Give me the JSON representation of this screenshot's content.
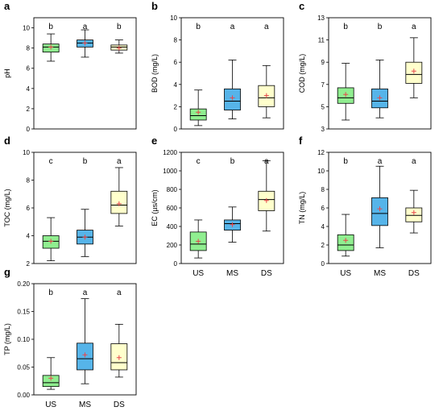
{
  "colors": {
    "US": "#90ee90",
    "MS": "#56b4e9",
    "DS": "#ffffcc",
    "mean_marker": "#e8474b",
    "frame": "#000000"
  },
  "chart_data": [
    {
      "type": "box",
      "panel_letter": "a",
      "ylabel": "pH",
      "ylim": [
        0,
        11
      ],
      "yticks": [
        0,
        2,
        4,
        6,
        8,
        10
      ],
      "categories": [
        "US",
        "MS",
        "DS"
      ],
      "show_xtick_labels": false,
      "boxes": [
        {
          "group": "US",
          "min": 6.7,
          "q1": 7.6,
          "median": 8.1,
          "q3": 8.4,
          "max": 9.4,
          "mean": 8.1,
          "letter": "b"
        },
        {
          "group": "MS",
          "min": 7.1,
          "q1": 8.1,
          "median": 8.5,
          "q3": 8.8,
          "max": 9.8,
          "mean": 8.5,
          "letter": "a"
        },
        {
          "group": "DS",
          "min": 7.5,
          "q1": 7.8,
          "median": 8.1,
          "q3": 8.3,
          "max": 8.8,
          "mean": 8.0,
          "letter": "b"
        }
      ]
    },
    {
      "type": "box",
      "panel_letter": "b",
      "ylabel": "BOD (mg/L)",
      "ylim": [
        0,
        10
      ],
      "yticks": [
        0,
        2,
        4,
        6,
        8,
        10
      ],
      "categories": [
        "US",
        "MS",
        "DS"
      ],
      "show_xtick_labels": false,
      "boxes": [
        {
          "group": "US",
          "min": 0.3,
          "q1": 0.8,
          "median": 1.2,
          "q3": 1.8,
          "max": 3.5,
          "mean": 1.5,
          "letter": "b"
        },
        {
          "group": "MS",
          "min": 0.9,
          "q1": 1.7,
          "median": 2.5,
          "q3": 3.6,
          "max": 6.2,
          "mean": 2.8,
          "letter": "a"
        },
        {
          "group": "DS",
          "min": 1.0,
          "q1": 2.0,
          "median": 2.8,
          "q3": 3.9,
          "max": 5.7,
          "mean": 3.0,
          "letter": "a"
        }
      ]
    },
    {
      "type": "box",
      "panel_letter": "c",
      "ylabel": "COD (mg/L)",
      "ylim": [
        3,
        13
      ],
      "yticks": [
        3,
        5,
        7,
        9,
        11,
        13
      ],
      "categories": [
        "US",
        "MS",
        "DS"
      ],
      "show_xtick_labels": false,
      "boxes": [
        {
          "group": "US",
          "min": 3.8,
          "q1": 5.3,
          "median": 5.8,
          "q3": 6.7,
          "max": 8.9,
          "mean": 6.1,
          "letter": "b"
        },
        {
          "group": "MS",
          "min": 4.0,
          "q1": 4.9,
          "median": 5.5,
          "q3": 6.6,
          "max": 9.2,
          "mean": 5.8,
          "letter": "b"
        },
        {
          "group": "DS",
          "min": 5.8,
          "q1": 7.1,
          "median": 7.9,
          "q3": 9.0,
          "max": 11.2,
          "mean": 8.2,
          "letter": "a"
        }
      ]
    },
    {
      "type": "box",
      "panel_letter": "d",
      "ylabel": "TOC (mg/L)",
      "ylim": [
        2,
        10
      ],
      "yticks": [
        2,
        4,
        6,
        8,
        10
      ],
      "categories": [
        "US",
        "MS",
        "DS"
      ],
      "show_xtick_labels": false,
      "boxes": [
        {
          "group": "US",
          "min": 2.2,
          "q1": 3.1,
          "median": 3.6,
          "q3": 4.0,
          "max": 5.3,
          "mean": 3.6,
          "letter": "c"
        },
        {
          "group": "MS",
          "min": 2.5,
          "q1": 3.4,
          "median": 3.9,
          "q3": 4.4,
          "max": 5.9,
          "mean": 3.9,
          "letter": "b"
        },
        {
          "group": "DS",
          "min": 4.7,
          "q1": 5.6,
          "median": 6.2,
          "q3": 7.2,
          "max": 8.9,
          "mean": 6.3,
          "letter": "a"
        }
      ]
    },
    {
      "type": "box",
      "panel_letter": "e",
      "ylabel": "EC (µs/cm)",
      "ylim": [
        0,
        1200
      ],
      "yticks": [
        0,
        200,
        400,
        600,
        800,
        1000,
        1200
      ],
      "categories": [
        "US",
        "MS",
        "DS"
      ],
      "show_xtick_labels": true,
      "boxes": [
        {
          "group": "US",
          "min": 60,
          "q1": 140,
          "median": 210,
          "q3": 340,
          "max": 470,
          "mean": 240,
          "letter": "c"
        },
        {
          "group": "MS",
          "min": 230,
          "q1": 360,
          "median": 430,
          "q3": 470,
          "max": 610,
          "mean": 420,
          "letter": "b"
        },
        {
          "group": "DS",
          "min": 350,
          "q1": 570,
          "median": 690,
          "q3": 780,
          "max": 1110,
          "mean": 680,
          "letter": "a"
        }
      ]
    },
    {
      "type": "box",
      "panel_letter": "f",
      "ylabel": "TN (mg/L)",
      "ylim": [
        0,
        12
      ],
      "yticks": [
        0,
        2,
        4,
        6,
        8,
        10,
        12
      ],
      "categories": [
        "US",
        "MS",
        "DS"
      ],
      "show_xtick_labels": true,
      "boxes": [
        {
          "group": "US",
          "min": 0.8,
          "q1": 1.4,
          "median": 2.0,
          "q3": 3.1,
          "max": 5.3,
          "mean": 2.5,
          "letter": "b"
        },
        {
          "group": "MS",
          "min": 1.7,
          "q1": 4.1,
          "median": 5.4,
          "q3": 7.1,
          "max": 10.5,
          "mean": 5.9,
          "letter": "a"
        },
        {
          "group": "DS",
          "min": 3.3,
          "q1": 4.5,
          "median": 5.2,
          "q3": 6.0,
          "max": 7.9,
          "mean": 5.5,
          "letter": "a"
        }
      ]
    },
    {
      "type": "box",
      "panel_letter": "g",
      "ylabel": "TP (mg/L)",
      "ylim": [
        0,
        0.2
      ],
      "yticks": [
        0,
        0.05,
        0.1,
        0.15,
        0.2
      ],
      "ytick_labels": [
        "0.00",
        "0.05",
        "0.10",
        "0.15",
        "0.20"
      ],
      "categories": [
        "US",
        "MS",
        "DS"
      ],
      "show_xtick_labels": true,
      "boxes": [
        {
          "group": "US",
          "min": 0.01,
          "q1": 0.015,
          "median": 0.022,
          "q3": 0.035,
          "max": 0.067,
          "mean": 0.03,
          "letter": "b"
        },
        {
          "group": "MS",
          "min": 0.02,
          "q1": 0.045,
          "median": 0.065,
          "q3": 0.093,
          "max": 0.173,
          "mean": 0.072,
          "letter": "a"
        },
        {
          "group": "DS",
          "min": 0.032,
          "q1": 0.045,
          "median": 0.058,
          "q3": 0.092,
          "max": 0.127,
          "mean": 0.067,
          "letter": "a"
        }
      ]
    }
  ]
}
